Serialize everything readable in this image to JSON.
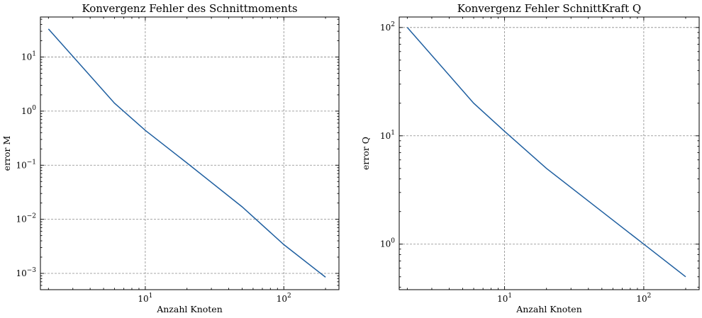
{
  "chart_data": [
    {
      "type": "line",
      "title": "Konvergenz Fehler des Schnittmoments",
      "xlabel": "Anzahl Knoten",
      "ylabel": "error M",
      "xscale": "log",
      "yscale": "log",
      "xlim": [
        1.75,
        250
      ],
      "ylim": [
        0.0005,
        55
      ],
      "grid": true,
      "x_ticks": [
        {
          "value": 10,
          "base": "10",
          "exp": "1"
        },
        {
          "value": 100,
          "base": "10",
          "exp": "2"
        }
      ],
      "y_ticks": [
        {
          "value": 0.001,
          "base": "10",
          "exp": "−3"
        },
        {
          "value": 0.01,
          "base": "10",
          "exp": "−2"
        },
        {
          "value": 0.1,
          "base": "10",
          "exp": "−1"
        },
        {
          "value": 1,
          "base": "10",
          "exp": "0"
        },
        {
          "value": 10,
          "base": "10",
          "exp": "1"
        }
      ],
      "series": [
        {
          "color": "#1f5fa0",
          "x": [
            2,
            6,
            10,
            20,
            50,
            100,
            200
          ],
          "y": [
            33,
            1.4,
            0.44,
            0.11,
            0.017,
            0.0034,
            0.00085
          ]
        }
      ]
    },
    {
      "type": "line",
      "title": "Konvergenz Fehler SchnittKraft Q",
      "xlabel": "Anzahl Knoten",
      "ylabel": "error Q",
      "xscale": "log",
      "yscale": "log",
      "xlim": [
        1.75,
        250
      ],
      "ylim": [
        0.38,
        125
      ],
      "grid": true,
      "x_ticks": [
        {
          "value": 10,
          "base": "10",
          "exp": "1"
        },
        {
          "value": 100,
          "base": "10",
          "exp": "2"
        }
      ],
      "y_ticks": [
        {
          "value": 1,
          "base": "10",
          "exp": "0"
        },
        {
          "value": 10,
          "base": "10",
          "exp": "1"
        },
        {
          "value": 100,
          "base": "10",
          "exp": "2"
        }
      ],
      "series": [
        {
          "color": "#1f5fa0",
          "x": [
            2,
            6,
            10,
            20,
            50,
            100,
            200
          ],
          "y": [
            100,
            20,
            11,
            5,
            2,
            1,
            0.5
          ]
        }
      ]
    }
  ]
}
